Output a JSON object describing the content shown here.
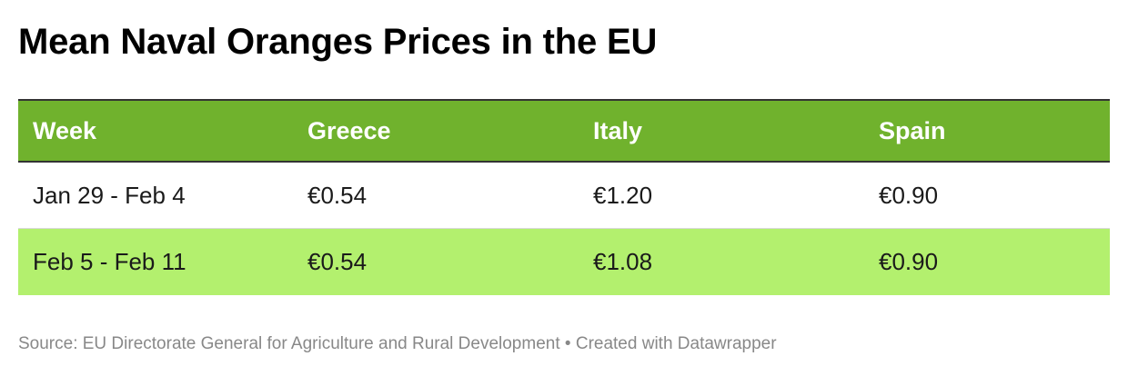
{
  "title": "Mean Naval Oranges Prices in the EU",
  "chart_data": {
    "type": "table",
    "title": "Mean Naval Oranges Prices in the EU",
    "columns": [
      "Week",
      "Greece",
      "Italy",
      "Spain"
    ],
    "rows": [
      {
        "cells": [
          "Jan 29 - Feb 4",
          "€0.54",
          "€1.20",
          "€0.90"
        ],
        "values": {
          "Greece": 0.54,
          "Italy": 1.2,
          "Spain": 0.9
        },
        "highlight": false
      },
      {
        "cells": [
          "Feb 5 - Feb 11",
          "€0.54",
          "€1.08",
          "€0.90"
        ],
        "values": {
          "Greece": 0.54,
          "Italy": 1.08,
          "Spain": 0.9
        },
        "highlight": true
      }
    ]
  },
  "colors": {
    "header_background": "#70b22d",
    "highlight_row_background": "#b3f06e",
    "header_text": "#ffffff",
    "footer_text": "#888888"
  },
  "footer": {
    "source": "Source: EU Directorate General for Agriculture and Rural Development",
    "separator": "•",
    "credit": "Created with Datawrapper"
  }
}
